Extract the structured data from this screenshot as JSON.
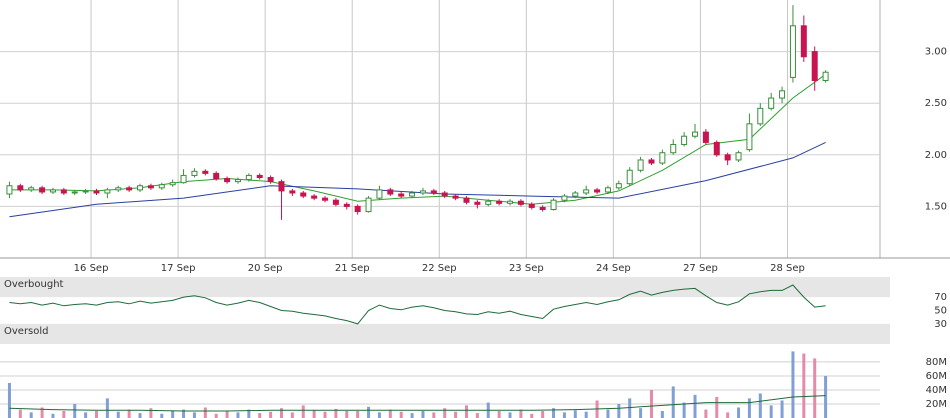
{
  "chart_data": [
    {
      "type": "candlestick",
      "open": [
        1.62,
        1.7,
        1.66,
        1.68,
        1.64,
        1.66,
        1.63,
        1.64,
        1.65,
        1.63,
        1.66,
        1.68,
        1.66,
        1.7,
        1.68,
        1.71,
        1.73,
        1.8,
        1.84,
        1.82,
        1.77,
        1.74,
        1.76,
        1.8,
        1.78,
        1.74,
        1.65,
        1.63,
        1.6,
        1.58,
        1.56,
        1.52,
        1.5,
        1.45,
        1.58,
        1.66,
        1.62,
        1.6,
        1.63,
        1.65,
        1.63,
        1.6,
        1.58,
        1.54,
        1.52,
        1.55,
        1.53,
        1.55,
        1.52,
        1.49,
        1.47,
        1.56,
        1.6,
        1.63,
        1.66,
        1.64,
        1.68,
        1.72,
        1.85,
        1.95,
        1.92,
        2.02,
        2.1,
        2.18,
        2.22,
        2.12,
        2.0,
        1.95,
        2.05,
        2.3,
        2.45,
        2.55,
        2.75,
        3.25,
        3.0,
        2.72
      ],
      "high": [
        1.74,
        1.72,
        1.7,
        1.7,
        1.68,
        1.68,
        1.66,
        1.67,
        1.67,
        1.68,
        1.7,
        1.7,
        1.72,
        1.72,
        1.73,
        1.76,
        1.86,
        1.87,
        1.86,
        1.84,
        1.79,
        1.78,
        1.82,
        1.82,
        1.8,
        1.76,
        1.67,
        1.65,
        1.62,
        1.6,
        1.58,
        1.54,
        1.52,
        1.6,
        1.7,
        1.68,
        1.64,
        1.65,
        1.68,
        1.67,
        1.65,
        1.62,
        1.6,
        1.56,
        1.57,
        1.57,
        1.57,
        1.57,
        1.54,
        1.51,
        1.58,
        1.62,
        1.65,
        1.7,
        1.68,
        1.7,
        1.75,
        1.88,
        1.98,
        1.97,
        2.05,
        2.15,
        2.22,
        2.3,
        2.25,
        2.14,
        2.02,
        2.04,
        2.4,
        2.5,
        2.6,
        2.66,
        3.45,
        3.35,
        3.05,
        2.82
      ],
      "low": [
        1.58,
        1.64,
        1.64,
        1.62,
        1.62,
        1.61,
        1.61,
        1.62,
        1.61,
        1.58,
        1.64,
        1.64,
        1.64,
        1.66,
        1.66,
        1.69,
        1.72,
        1.78,
        1.8,
        1.75,
        1.72,
        1.72,
        1.74,
        1.76,
        1.72,
        1.37,
        1.6,
        1.58,
        1.56,
        1.54,
        1.5,
        1.47,
        1.42,
        1.44,
        1.56,
        1.6,
        1.58,
        1.58,
        1.61,
        1.61,
        1.58,
        1.56,
        1.52,
        1.48,
        1.5,
        1.51,
        1.51,
        1.5,
        1.47,
        1.45,
        1.46,
        1.54,
        1.58,
        1.61,
        1.62,
        1.62,
        1.66,
        1.7,
        1.83,
        1.9,
        1.9,
        2.0,
        2.08,
        2.16,
        2.1,
        1.98,
        1.9,
        1.93,
        2.03,
        2.28,
        2.43,
        2.5,
        2.7,
        2.9,
        2.62,
        2.7
      ],
      "close": [
        1.7,
        1.66,
        1.68,
        1.64,
        1.66,
        1.63,
        1.64,
        1.65,
        1.63,
        1.66,
        1.68,
        1.66,
        1.7,
        1.68,
        1.71,
        1.73,
        1.8,
        1.84,
        1.82,
        1.77,
        1.74,
        1.76,
        1.8,
        1.78,
        1.74,
        1.65,
        1.63,
        1.6,
        1.58,
        1.56,
        1.52,
        1.5,
        1.45,
        1.58,
        1.66,
        1.62,
        1.6,
        1.63,
        1.65,
        1.63,
        1.6,
        1.58,
        1.54,
        1.52,
        1.55,
        1.53,
        1.55,
        1.52,
        1.49,
        1.47,
        1.56,
        1.6,
        1.63,
        1.66,
        1.64,
        1.68,
        1.72,
        1.85,
        1.95,
        1.92,
        2.02,
        2.1,
        2.18,
        2.22,
        2.12,
        2.0,
        1.95,
        2.02,
        2.3,
        2.45,
        2.55,
        2.62,
        3.25,
        2.95,
        2.72,
        2.8
      ],
      "up_color": "#3a8f3a",
      "down_color": "#c8154f",
      "overlays": [
        {
          "color": "#2ea02e",
          "x": [
            0.5,
            4.5,
            8.5,
            12.5,
            16.5,
            20.5,
            24.5,
            28.5,
            32.5,
            36.5,
            40.5,
            44.5,
            48.5,
            52.5,
            56.5,
            60.5,
            64.5,
            68.5,
            72.5,
            75.5
          ],
          "values": [
            1.66,
            1.66,
            1.65,
            1.68,
            1.74,
            1.77,
            1.74,
            1.65,
            1.55,
            1.58,
            1.6,
            1.56,
            1.52,
            1.56,
            1.65,
            1.85,
            2.1,
            2.15,
            2.55,
            2.78
          ]
        },
        {
          "color": "#2a3fa0",
          "x": [
            0.5,
            8.5,
            16.5,
            24.5,
            32.5,
            40.5,
            48.5,
            56.5,
            64.5,
            72.5,
            75.5
          ],
          "values": [
            1.4,
            1.52,
            1.58,
            1.7,
            1.67,
            1.62,
            1.6,
            1.58,
            1.75,
            1.97,
            2.12
          ]
        }
      ],
      "xlim": [
        0,
        80.5
      ],
      "xticks": [
        {
          "value": 8,
          "label": "16 Sep"
        },
        {
          "value": 16,
          "label": "17 Sep"
        },
        {
          "value": 24,
          "label": "20 Sep"
        },
        {
          "value": 32,
          "label": "21 Sep"
        },
        {
          "value": 40,
          "label": "22 Sep"
        },
        {
          "value": 48,
          "label": "23 Sep"
        },
        {
          "value": 56,
          "label": "24 Sep"
        },
        {
          "value": 64,
          "label": "27 Sep"
        },
        {
          "value": 72,
          "label": "28 Sep"
        }
      ],
      "ylim": [
        1.0,
        3.5
      ],
      "yticks": [
        {
          "value": 1.5,
          "label": "1.50"
        },
        {
          "value": 2,
          "label": "2.00"
        },
        {
          "value": 2.5,
          "label": "2.50"
        },
        {
          "value": 3,
          "label": "3.00"
        }
      ],
      "grid": true
    },
    {
      "type": "line",
      "values": [
        62,
        60,
        62,
        58,
        61,
        57,
        59,
        60,
        58,
        62,
        63,
        60,
        64,
        61,
        63,
        65,
        70,
        72,
        69,
        62,
        58,
        61,
        65,
        62,
        56,
        50,
        49,
        46,
        44,
        42,
        38,
        35,
        30,
        50,
        58,
        53,
        51,
        55,
        57,
        54,
        50,
        48,
        45,
        44,
        48,
        46,
        49,
        44,
        41,
        38,
        52,
        56,
        59,
        62,
        59,
        63,
        66,
        74,
        79,
        73,
        77,
        80,
        82,
        83,
        72,
        62,
        58,
        63,
        75,
        78,
        80,
        80,
        88,
        70,
        55,
        57
      ],
      "color": "#1f6b3a",
      "zones": [
        {
          "label": "Overbought",
          "from": 70,
          "to": 100
        },
        {
          "label": "Oversold",
          "from": 0,
          "to": 30
        }
      ],
      "ylim": [
        0,
        100
      ],
      "yticks": [
        30,
        50,
        70
      ]
    },
    {
      "type": "bar",
      "values": [
        50000000,
        12000000,
        8000000,
        15000000,
        6000000,
        10000000,
        20000000,
        8000000,
        10000000,
        28000000,
        9000000,
        12000000,
        7000000,
        14000000,
        6000000,
        10000000,
        12000000,
        8000000,
        15000000,
        6000000,
        10000000,
        8000000,
        12000000,
        7000000,
        9000000,
        14000000,
        8000000,
        18000000,
        11000000,
        9000000,
        13000000,
        10000000,
        10000000,
        16000000,
        8000000,
        12000000,
        9000000,
        7000000,
        10000000,
        8000000,
        14000000,
        9000000,
        18000000,
        7000000,
        22000000,
        10000000,
        8000000,
        12000000,
        6000000,
        10000000,
        14000000,
        8000000,
        11000000,
        9000000,
        25000000,
        12000000,
        20000000,
        28000000,
        14000000,
        40000000,
        10000000,
        45000000,
        22000000,
        33000000,
        12000000,
        30000000,
        8000000,
        15000000,
        28000000,
        35000000,
        18000000,
        25000000,
        95000000,
        92000000,
        85000000,
        60000000
      ],
      "up_color": "#7f9fd6",
      "down_color": "#e58aa8",
      "overlay": {
        "color": "#1f6b3a",
        "x": [
          0.5,
          4.5,
          8.5,
          12.5,
          16.5,
          20.5,
          24.5,
          28.5,
          32.5,
          36.5,
          40.5,
          44.5,
          48.5,
          52.5,
          56.5,
          60.5,
          64.5,
          68.5,
          72.5,
          75.5
        ],
        "values": [
          14000000,
          12000000,
          11000000,
          11000000,
          10000000,
          10000000,
          11000000,
          11000000,
          11000000,
          11000000,
          11000000,
          11000000,
          11000000,
          12000000,
          14000000,
          18000000,
          22000000,
          22000000,
          30000000,
          32000000
        ]
      },
      "ylim": [
        0,
        97000000
      ],
      "yticks": [
        {
          "value": 20000000,
          "label": "20M"
        },
        {
          "value": 40000000,
          "label": "40M"
        },
        {
          "value": 60000000,
          "label": "60M"
        },
        {
          "value": 80000000,
          "label": "80M"
        }
      ],
      "grid": true
    }
  ]
}
